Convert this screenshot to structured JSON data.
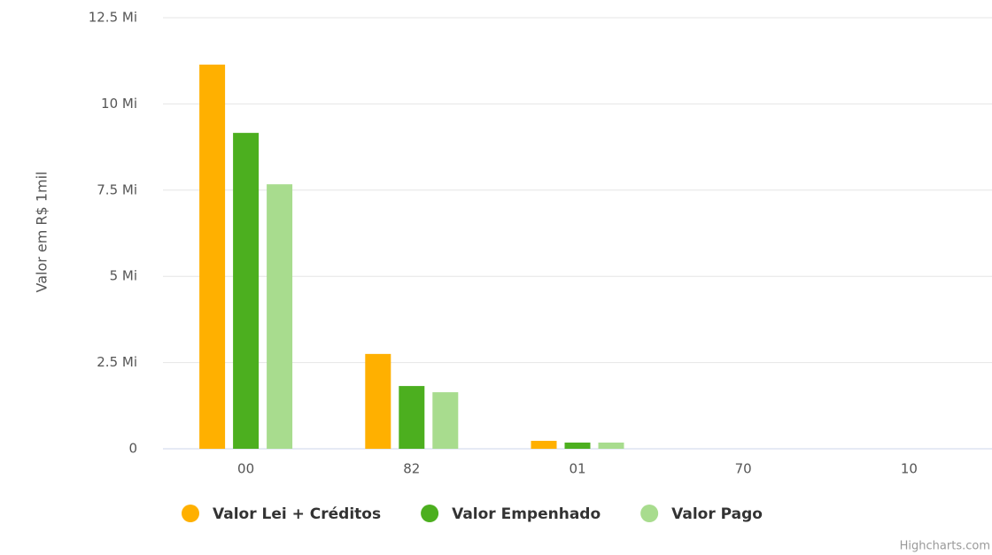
{
  "chart_data": {
    "type": "bar",
    "y_axis_label": "Valor em R$ 1mil",
    "categories": [
      "00",
      "82",
      "01",
      "70",
      "10"
    ],
    "series": [
      {
        "name": "Valor Lei + Créditos",
        "color": "#ffb000",
        "values": [
          11.14,
          2.75,
          0.23,
          0,
          0
        ]
      },
      {
        "name": "Valor Empenhado",
        "color": "#4caf1f",
        "values": [
          9.16,
          1.82,
          0.18,
          0,
          0
        ]
      },
      {
        "name": "Valor Pago",
        "color": "#a8dc8e",
        "values": [
          7.67,
          1.64,
          0.18,
          0,
          0
        ]
      }
    ],
    "ylim": [
      0,
      12.5
    ],
    "yticks": [
      0,
      {
        "value": 2.5,
        "label": "2.5 Mi"
      },
      {
        "value": 5,
        "label": "5 Mi"
      },
      {
        "value": 7.5,
        "label": "7.5 Mi"
      },
      {
        "value": 10,
        "label": "10 Mi"
      },
      {
        "value": 12.5,
        "label": "12.5 Mi"
      }
    ],
    "grid": true,
    "credits": "Highcharts.com"
  }
}
